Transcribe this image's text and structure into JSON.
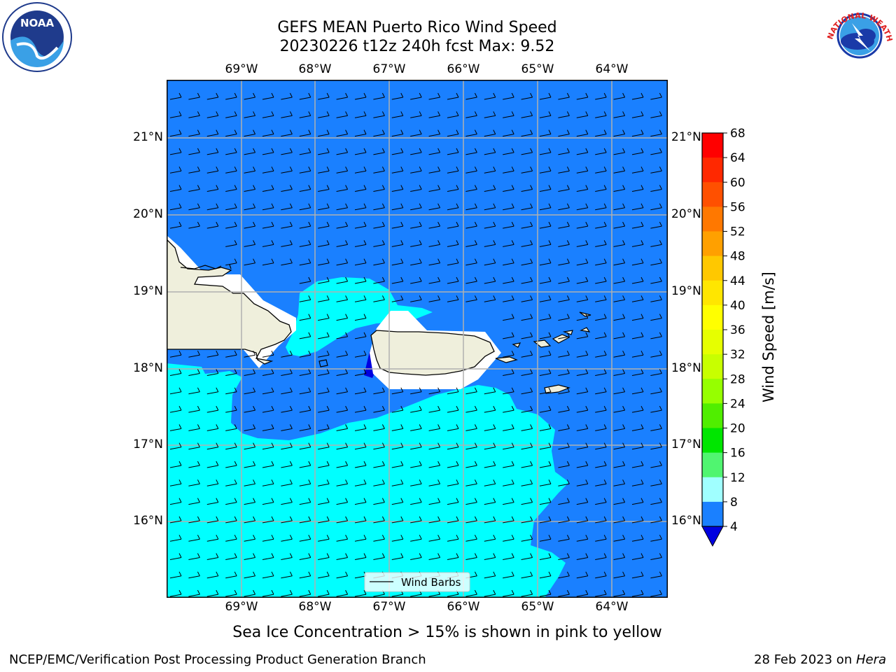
{
  "header": {
    "title_line1": "GEFS MEAN Puerto Rico Wind Speed",
    "title_line2": "20230226 t12z 240h fcst   Max: 9.52",
    "left_logo": {
      "icon": "noaa-logo-icon",
      "text": "NOAA"
    },
    "right_logo": {
      "icon": "nws-logo-icon",
      "text": "NATIONAL WEATHER SERVICE"
    }
  },
  "map": {
    "lon_labels": [
      "69°W",
      "68°W",
      "67°W",
      "66°W",
      "65°W",
      "64°W"
    ],
    "lat_labels": [
      "21°N",
      "20°N",
      "19°N",
      "18°N",
      "17°N",
      "16°N"
    ],
    "legend_label": "Wind Barbs",
    "colors": {
      "ocean_4_8": "#1a80ff",
      "ocean_8_12": "#00ffff",
      "ocean_12_16": "#44ffff",
      "land": "#efefdc",
      "below_4": "#0000e0"
    }
  },
  "colorbar": {
    "label": "Wind Speed [m/s]",
    "ticks": [
      "68",
      "64",
      "60",
      "56",
      "52",
      "48",
      "44",
      "40",
      "36",
      "32",
      "28",
      "24",
      "20",
      "16",
      "12",
      "8",
      "4"
    ],
    "colors": [
      "#ff0000",
      "#ff2800",
      "#ff5000",
      "#ff7800",
      "#ffa000",
      "#ffc800",
      "#ffe600",
      "#ffff00",
      "#e6ff00",
      "#c8ff00",
      "#96ff00",
      "#50ee00",
      "#00e600",
      "#50f570",
      "#a0ffff",
      "#50ffff",
      "#00ffff",
      "#1a80ff"
    ],
    "extend_color": "#0000e0"
  },
  "footer": {
    "note": "Sea Ice Concentration > 15% is shown in pink to yellow",
    "left": "NCEP/EMC/Verification Post Processing Product Generation Branch",
    "date": "28 Feb 2023 on ",
    "host": "Hera"
  }
}
